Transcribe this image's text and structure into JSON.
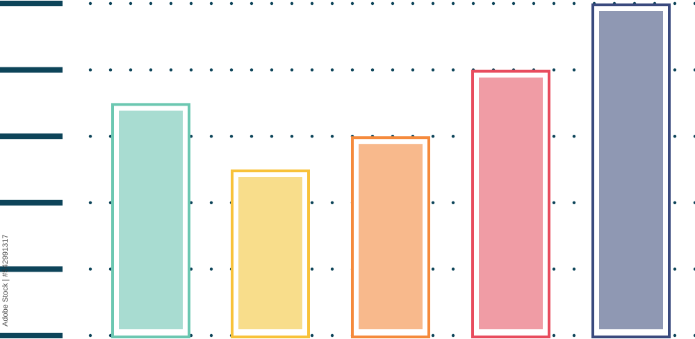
{
  "chart_data": {
    "type": "bar",
    "categories": [
      "",
      "",
      "",
      "",
      ""
    ],
    "values": [
      3.5,
      2.5,
      3,
      4,
      5
    ],
    "ylim": [
      0,
      5
    ],
    "yticks": [
      0,
      1,
      2,
      3,
      4,
      5
    ],
    "grid": true,
    "grid_style": "dotted",
    "title": "",
    "xlabel": "",
    "ylabel": "",
    "colors": [
      {
        "stroke": "#6cc7b1",
        "fill": "#a8dcd1"
      },
      {
        "stroke": "#f8c23a",
        "fill": "#f8dd8b"
      },
      {
        "stroke": "#f58a3c",
        "fill": "#f8b98c"
      },
      {
        "stroke": "#e84c5e",
        "fill": "#f09ca5"
      },
      {
        "stroke": "#3a4a7e",
        "fill": "#8f98b3"
      }
    ],
    "axis_color": "#0d4459"
  },
  "watermark": "Adobe Stock | #542991317"
}
